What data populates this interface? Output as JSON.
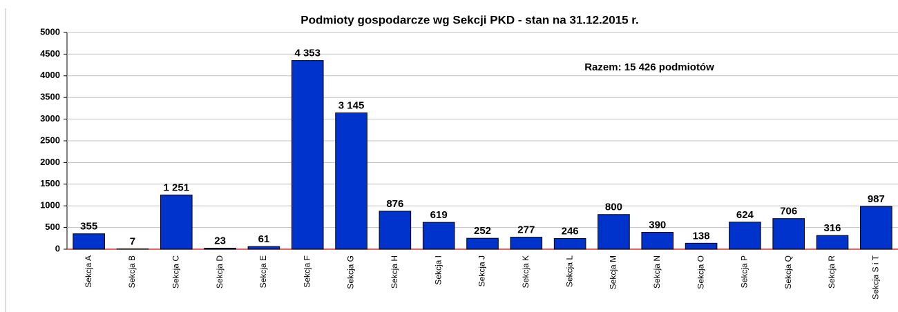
{
  "chart_data": {
    "type": "bar",
    "title": "Podmioty gospodarcze wg Sekcji PKD - stan na 31.12.2015 r.",
    "annotation": "Razem: 15 426 podmiotów",
    "categories": [
      "Sekcja A",
      "Sekcja B",
      "Sekcja C",
      "Sekcja D",
      "Sekcja E",
      "Sekcja F",
      "Sekcja G",
      "Sekcja H",
      "Sekcja I",
      "Sekcja J",
      "Sekcja K",
      "Sekcja L",
      "Sekcja M",
      "Sekcja N",
      "Sekcja O",
      "Sekcja P",
      "Sekcja Q",
      "Sekcja R",
      "Sekcja S i T"
    ],
    "values": [
      355,
      7,
      1251,
      23,
      61,
      4353,
      3145,
      876,
      619,
      252,
      277,
      246,
      800,
      390,
      138,
      624,
      706,
      316,
      987
    ],
    "value_labels": [
      "355",
      "7",
      "1 251",
      "23",
      "61",
      "4 353",
      "3 145",
      "876",
      "619",
      "252",
      "277",
      "246",
      "800",
      "390",
      "138",
      "624",
      "706",
      "316",
      "987"
    ],
    "color": "#0033cc",
    "ylim": [
      0,
      5000
    ],
    "yticks": [
      0,
      500,
      1000,
      1500,
      2000,
      2500,
      3000,
      3500,
      4000,
      4500,
      5000
    ],
    "grid": true
  }
}
